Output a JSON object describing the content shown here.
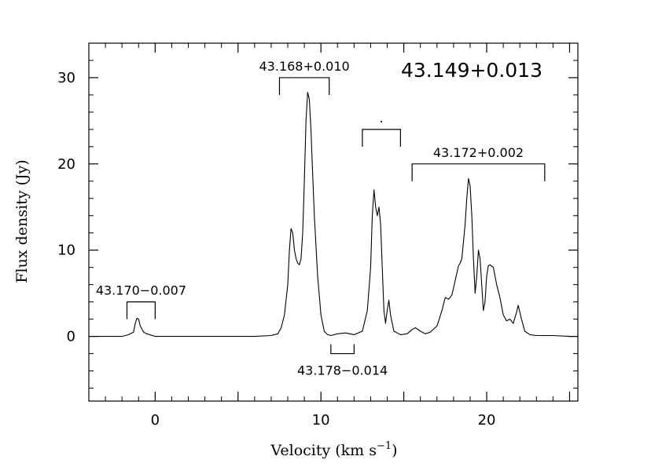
{
  "chart_data": {
    "type": "line",
    "title": "43.149+0.013",
    "xlabel_main": "Velocity (km s",
    "xlabel_sup": "−1",
    "xlabel_close": ")",
    "ylabel": "Flux density (Jy)",
    "xlim": [
      -4.0,
      25.5
    ],
    "ylim": [
      -7.5,
      34.0
    ],
    "grid": false,
    "x_ticks": [
      0,
      10,
      20
    ],
    "x_tick_labels": [
      "0",
      "10",
      "20"
    ],
    "y_ticks": [
      0,
      10,
      20,
      30
    ],
    "y_tick_labels": [
      "0",
      "10",
      "20",
      "30"
    ],
    "series": [
      {
        "x": [
          -4.0,
          -3.0,
          -2.0,
          -1.6,
          -1.3,
          -1.2,
          -1.1,
          -1.0,
          -0.9,
          -0.7,
          -0.5,
          0.0,
          1.0,
          2.0,
          3.0,
          4.0,
          5.0,
          6.0,
          7.0,
          7.4,
          7.6,
          7.8,
          8.0,
          8.1,
          8.2,
          8.3,
          8.4,
          8.5,
          8.6,
          8.7,
          8.8,
          8.9,
          9.0,
          9.1,
          9.2,
          9.3,
          9.4,
          9.5,
          9.6,
          9.8,
          10.0,
          10.2,
          10.4,
          10.6,
          11.0,
          11.5,
          12.0,
          12.5,
          12.8,
          13.0,
          13.1,
          13.2,
          13.3,
          13.4,
          13.5,
          13.6,
          13.7,
          13.8,
          13.9,
          14.0,
          14.1,
          14.2,
          14.4,
          14.8,
          15.2,
          15.5,
          15.7,
          16.0,
          16.3,
          16.6,
          17.0,
          17.3,
          17.5,
          17.7,
          17.9,
          18.1,
          18.3,
          18.4,
          18.5,
          18.6,
          18.7,
          18.8,
          18.9,
          19.0,
          19.1,
          19.2,
          19.3,
          19.4,
          19.5,
          19.6,
          19.7,
          19.8,
          19.9,
          20.0,
          20.1,
          20.2,
          20.4,
          20.5,
          20.6,
          20.8,
          21.0,
          21.2,
          21.4,
          21.6,
          21.8,
          21.9,
          22.1,
          22.3,
          22.6,
          23.0,
          24.0,
          25.0,
          25.5
        ],
        "y": [
          0,
          0,
          0,
          0.2,
          0.5,
          1.5,
          2.1,
          2.0,
          1.2,
          0.5,
          0.3,
          0,
          0,
          0,
          0,
          0,
          0,
          0,
          0.1,
          0.3,
          1.0,
          2.5,
          6.0,
          10.0,
          12.5,
          12.0,
          10.0,
          9.0,
          8.5,
          8.3,
          9.0,
          12.0,
          18.0,
          25.0,
          28.3,
          27.5,
          24.0,
          19.0,
          14.0,
          7.0,
          2.5,
          0.6,
          0.2,
          0.1,
          0.3,
          0.4,
          0.2,
          0.6,
          3.0,
          8.0,
          14.0,
          17.0,
          15.0,
          14.0,
          15.0,
          13.0,
          8.0,
          3.0,
          1.5,
          3.0,
          4.2,
          2.5,
          0.6,
          0.2,
          0.3,
          0.8,
          1.0,
          0.6,
          0.3,
          0.5,
          1.2,
          3.0,
          4.5,
          4.3,
          4.8,
          6.5,
          8.2,
          8.5,
          9.0,
          11.0,
          13.0,
          16.0,
          18.3,
          17.5,
          14.0,
          9.0,
          5.0,
          7.0,
          10.0,
          9.0,
          6.0,
          3.0,
          4.0,
          7.0,
          8.2,
          8.3,
          8.0,
          7.0,
          6.0,
          4.5,
          2.5,
          1.8,
          2.0,
          1.5,
          2.8,
          3.6,
          2.0,
          0.6,
          0.2,
          0.1,
          0.1,
          0,
          0
        ]
      }
    ],
    "annotations": [
      {
        "label": "43.168+0.010",
        "x_range": [
          7.5,
          10.5
        ],
        "bracket": "down",
        "bracket_y": 30.0
      },
      {
        "label": ".",
        "x_range": [
          12.5,
          14.8
        ],
        "bracket": "down",
        "bracket_y": 24.0
      },
      {
        "label": "43.172+0.002",
        "x_range": [
          15.5,
          23.5
        ],
        "bracket": "down",
        "bracket_y": 20.0
      },
      {
        "label": "43.170−0.007",
        "x_range": [
          -1.7,
          0.0
        ],
        "bracket": "down",
        "bracket_y": 4.0
      },
      {
        "label": "43.178−0.014",
        "x_range": [
          10.6,
          12.0
        ],
        "bracket": "up",
        "bracket_y": -2.0
      }
    ]
  }
}
